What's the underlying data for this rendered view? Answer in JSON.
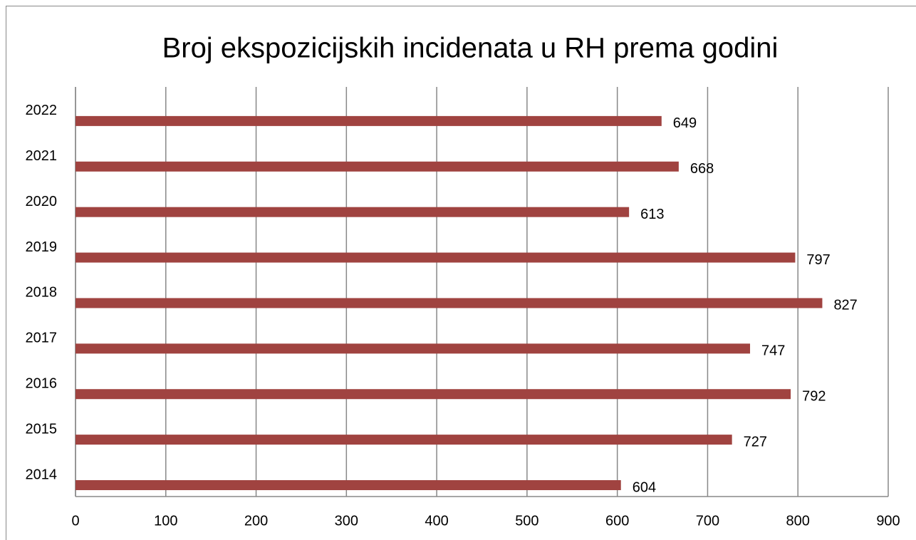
{
  "chart_data": {
    "type": "bar",
    "orientation": "horizontal",
    "title": "Broj ekspozicijskih incidenata u RH prema godini",
    "categories": [
      "2014",
      "2015",
      "2016",
      "2017",
      "2018",
      "2019",
      "2020",
      "2021",
      "2022"
    ],
    "values": [
      604,
      727,
      792,
      747,
      827,
      797,
      613,
      668,
      649
    ],
    "color": "#a04340",
    "xlim": [
      0,
      900
    ],
    "xticks": [
      0,
      100,
      200,
      300,
      400,
      500,
      600,
      700,
      800,
      900
    ],
    "grid": true
  }
}
